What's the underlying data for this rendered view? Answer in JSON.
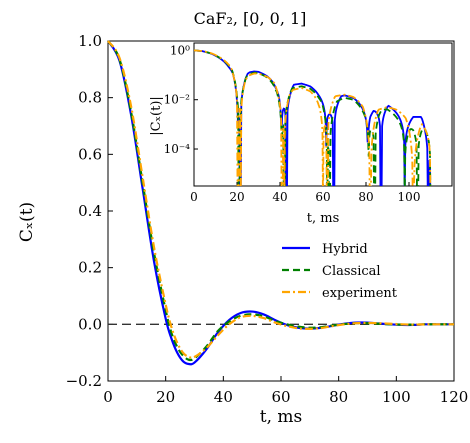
{
  "chart_data": {
    "type": "line",
    "title": "CaF₂, [0, 0, 1]",
    "xlabel": "t,  ms",
    "ylabel": "Cₓ(t)",
    "xlim": [
      0,
      120
    ],
    "ylim": [
      -0.2,
      1.0
    ],
    "x_ticks": [
      "0",
      "20",
      "40",
      "60",
      "80",
      "100",
      "120"
    ],
    "y_ticks": [
      "−0.2",
      "0.0",
      "0.2",
      "0.4",
      "0.6",
      "0.8",
      "1.0"
    ],
    "reference_line_y": 0.0,
    "legend_position": "lower-right of inset",
    "series": [
      {
        "name": "Hybrid",
        "color": "#0000ff",
        "style": "solid",
        "x": [
          0,
          4,
          8,
          12,
          16,
          20,
          22,
          24,
          26,
          28,
          30,
          34,
          38,
          42,
          46,
          50,
          54,
          58,
          62,
          66,
          70,
          74,
          78,
          82,
          86,
          90,
          94,
          98,
          102,
          106,
          110,
          114,
          120
        ],
        "y": [
          1.0,
          0.93,
          0.74,
          0.48,
          0.22,
          0.02,
          -0.05,
          -0.1,
          -0.13,
          -0.14,
          -0.135,
          -0.09,
          -0.03,
          0.015,
          0.04,
          0.045,
          0.035,
          0.015,
          -0.002,
          -0.012,
          -0.015,
          -0.012,
          -0.005,
          0.002,
          0.006,
          0.006,
          0.003,
          0.0,
          -0.002,
          -0.002,
          0.0,
          0.0,
          0.0
        ]
      },
      {
        "name": "Classical",
        "color": "#008000",
        "style": "dashed",
        "x": [
          0,
          4,
          8,
          12,
          16,
          20,
          22,
          24,
          26,
          28,
          30,
          34,
          38,
          42,
          46,
          50,
          54,
          58,
          62,
          66,
          70,
          74,
          78,
          82,
          86,
          90,
          94,
          98,
          102,
          106,
          110,
          114,
          120
        ],
        "y": [
          1.0,
          0.935,
          0.75,
          0.5,
          0.25,
          0.05,
          -0.03,
          -0.08,
          -0.11,
          -0.125,
          -0.12,
          -0.08,
          -0.025,
          0.01,
          0.03,
          0.035,
          0.028,
          0.012,
          0.0,
          -0.008,
          -0.012,
          -0.01,
          -0.004,
          0.001,
          0.004,
          0.004,
          0.002,
          0.0,
          -0.001,
          -0.001,
          0.0,
          0.0,
          0.0
        ]
      },
      {
        "name": "experiment",
        "color": "#ffa500",
        "style": "dashdot",
        "x": [
          0,
          4,
          8,
          12,
          16,
          20,
          22,
          24,
          26,
          28,
          30,
          34,
          38,
          42,
          46,
          50,
          54,
          58,
          62,
          66,
          70,
          74,
          78,
          82,
          86,
          90,
          94,
          98,
          102,
          106,
          110,
          114,
          120
        ],
        "y": [
          1.0,
          0.94,
          0.77,
          0.52,
          0.27,
          0.07,
          -0.01,
          -0.065,
          -0.1,
          -0.115,
          -0.115,
          -0.085,
          -0.04,
          0.0,
          0.025,
          0.03,
          0.022,
          0.006,
          -0.006,
          -0.014,
          -0.016,
          -0.013,
          -0.006,
          0.0,
          0.004,
          0.005,
          0.004,
          0.002,
          0.0,
          -0.001,
          0.0,
          0.0,
          0.0
        ]
      }
    ],
    "inset": {
      "type": "line",
      "xlabel": "t,  ms",
      "ylabel": "|Cₓ(t)|",
      "xlim": [
        0,
        120
      ],
      "ylim_log10": [
        -5.5,
        0.3
      ],
      "x_ticks": [
        "0",
        "20",
        "40",
        "60",
        "80",
        "100"
      ],
      "y_ticks": [
        "10⁰",
        "10⁻²",
        "10⁻⁴"
      ],
      "y_scale": "log",
      "zeros": {
        "Hybrid": [
          21.5,
          43,
          65,
          87,
          109
        ],
        "Classical": [
          21,
          42,
          63,
          84,
          104
        ],
        "experiment": [
          20.5,
          41,
          62,
          82,
          102
        ]
      }
    }
  }
}
